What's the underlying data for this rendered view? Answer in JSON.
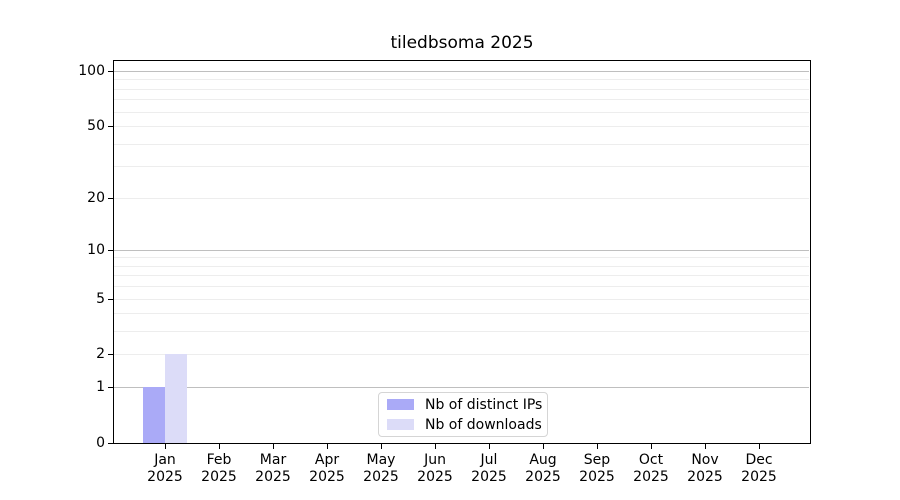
{
  "title": "tiledbsoma 2025",
  "colors": {
    "distinct_ips": "#aaaaf7",
    "downloads": "#dcdcf8",
    "grid_major": "#bfbfbf",
    "grid_minor": "#ededed",
    "axis": "#000000",
    "legend_border": "#d5d5d5",
    "background": "#ffffff",
    "text": "#000000"
  },
  "legend": {
    "items": [
      {
        "label": "Nb of distinct IPs",
        "key": "distinct_ips"
      },
      {
        "label": "Nb of downloads",
        "key": "downloads"
      }
    ]
  },
  "chart_data": {
    "type": "bar",
    "title": "tiledbsoma 2025",
    "categories": [
      "Jan",
      "Feb",
      "Mar",
      "Apr",
      "May",
      "Jun",
      "Jul",
      "Aug",
      "Sep",
      "Oct",
      "Nov",
      "Dec"
    ],
    "category_year": "2025",
    "series": [
      {
        "name": "Nb of distinct IPs",
        "key": "distinct_ips",
        "values": [
          1,
          0,
          0,
          0,
          0,
          0,
          0,
          0,
          0,
          0,
          0,
          0
        ]
      },
      {
        "name": "Nb of downloads",
        "key": "downloads",
        "values": [
          2,
          0,
          0,
          0,
          0,
          0,
          0,
          0,
          0,
          0,
          0,
          0
        ]
      }
    ],
    "xlabel": "",
    "ylabel": "",
    "yscale": "log1p",
    "ylim": [
      0,
      100
    ],
    "yticks": [
      0,
      1,
      2,
      5,
      10,
      20,
      50,
      100
    ],
    "grid_major_at": [
      1,
      10,
      100
    ],
    "grid_minor_at": [
      2,
      3,
      4,
      5,
      6,
      7,
      8,
      9,
      20,
      30,
      40,
      50,
      60,
      70,
      80,
      90
    ],
    "grid": true,
    "legend_position": "lower center"
  }
}
